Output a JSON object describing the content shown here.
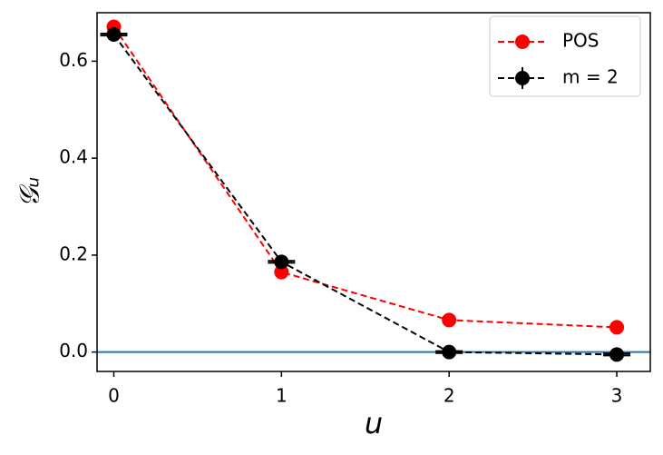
{
  "chart_data": {
    "type": "line",
    "x": [
      0,
      1,
      2,
      3
    ],
    "series": [
      {
        "name": "POS",
        "color": "#ff0000",
        "values": [
          0.671,
          0.165,
          0.066,
          0.051
        ]
      },
      {
        "name": "m = 2",
        "color": "#000000",
        "values": [
          0.655,
          0.186,
          0.0,
          -0.005
        ],
        "yerr": [
          0.002,
          0.002,
          0.002,
          0.002
        ]
      }
    ],
    "xlabel": "u",
    "ylabel": "𝒢ᵤ",
    "xlim": [
      -0.1,
      3.2
    ],
    "ylim": [
      -0.04,
      0.7
    ],
    "xticks": [
      0,
      1,
      2,
      3
    ],
    "yticks": [
      {
        "value": 0,
        "label": "0.0"
      },
      0.2,
      0.4,
      0.6
    ],
    "hline": 0,
    "hline_color": "#1f77b4",
    "legend": "upper right",
    "grid": false
  }
}
